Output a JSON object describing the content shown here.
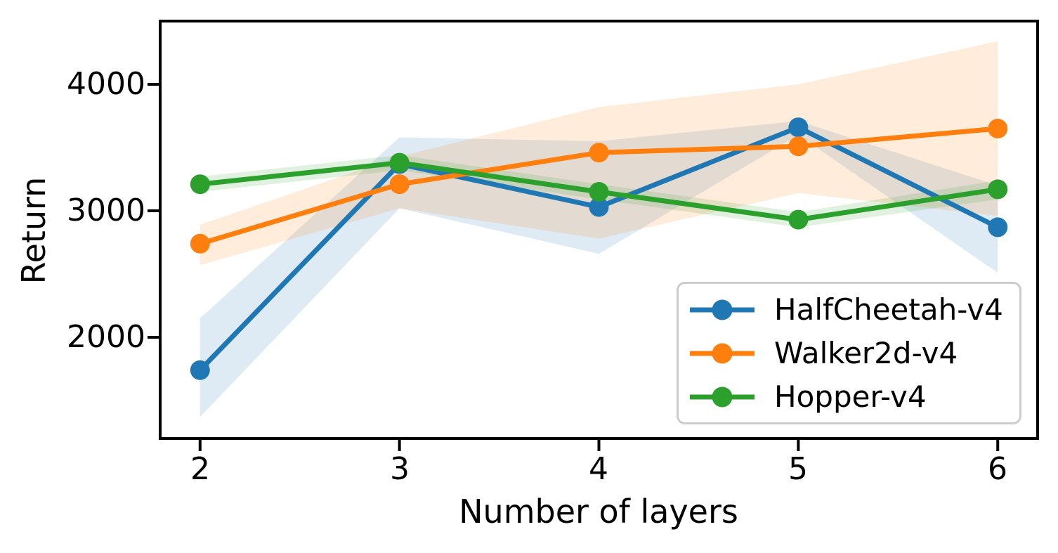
{
  "chart_data": {
    "type": "line",
    "title": "",
    "xlabel": "Number of layers",
    "ylabel": "Return",
    "x": [
      2,
      3,
      4,
      5,
      6
    ],
    "xtick_labels": [
      "2",
      "3",
      "4",
      "5",
      "6"
    ],
    "ytick_labels": [
      "2000",
      "3000",
      "4000"
    ],
    "yticks": [
      2000,
      3000,
      4000
    ],
    "xlim": [
      1.8,
      6.2
    ],
    "ylim": [
      1200,
      4500
    ],
    "grid": false,
    "legend_position": "lower right",
    "axis_color": "#000000",
    "band_opacity": 0.15,
    "marker": "o",
    "series": [
      {
        "name": "HalfCheetah-v4",
        "color": "#1f77b4",
        "values": [
          1740,
          3370,
          3030,
          3660,
          2870
        ],
        "band_lower": [
          1370,
          3020,
          2660,
          3600,
          2510
        ],
        "band_upper": [
          2150,
          3580,
          3550,
          3710,
          3200
        ]
      },
      {
        "name": "Walker2d-v4",
        "color": "#ff7f0e",
        "values": [
          2740,
          3210,
          3460,
          3510,
          3650
        ],
        "band_lower": [
          2570,
          3020,
          2780,
          3140,
          2960
        ],
        "band_upper": [
          2890,
          3430,
          3820,
          4000,
          4340
        ]
      },
      {
        "name": "Hopper-v4",
        "color": "#2ca02c",
        "values": [
          3210,
          3380,
          3150,
          2930,
          3170
        ],
        "band_lower": [
          3150,
          3320,
          3090,
          2870,
          3090
        ],
        "band_upper": [
          3270,
          3440,
          3210,
          2990,
          3240
        ]
      }
    ]
  }
}
